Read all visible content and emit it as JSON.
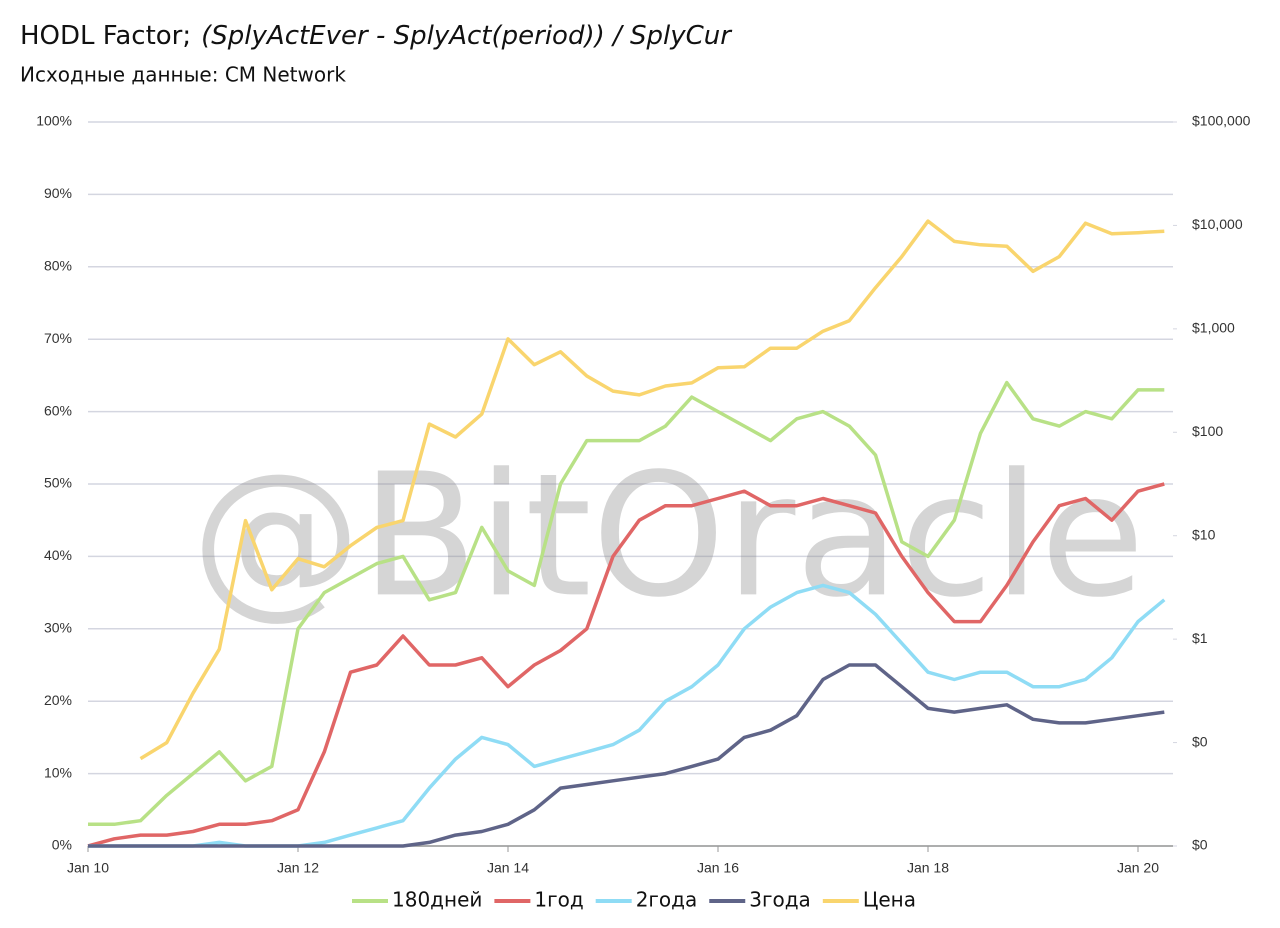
{
  "chart_data": {
    "type": "line",
    "title": "HODL Factor;",
    "title_formula": "(SplyActEver - SplyAct(period)) / SplyCur",
    "subtitle": "Исходные данные: CM Network",
    "watermark": "@BitOracle",
    "x": [
      "2010-01",
      "2010-04",
      "2010-07",
      "2010-10",
      "2011-01",
      "2011-04",
      "2011-07",
      "2011-10",
      "2012-01",
      "2012-04",
      "2012-07",
      "2012-10",
      "2013-01",
      "2013-04",
      "2013-07",
      "2013-10",
      "2014-01",
      "2014-04",
      "2014-07",
      "2014-10",
      "2015-01",
      "2015-04",
      "2015-07",
      "2015-10",
      "2016-01",
      "2016-04",
      "2016-07",
      "2016-10",
      "2017-01",
      "2017-04",
      "2017-07",
      "2017-10",
      "2018-01",
      "2018-04",
      "2018-07",
      "2018-10",
      "2019-01",
      "2019-04",
      "2019-07",
      "2019-10",
      "2020-01",
      "2020-04"
    ],
    "xlim": [
      "2010-01",
      "2020-05"
    ],
    "xticks": [
      {
        "value": "2010-01",
        "label": "Jan 10"
      },
      {
        "value": "2012-01",
        "label": "Jan 12"
      },
      {
        "value": "2014-01",
        "label": "Jan 14"
      },
      {
        "value": "2016-01",
        "label": "Jan 16"
      },
      {
        "value": "2018-01",
        "label": "Jan 18"
      },
      {
        "value": "2020-01",
        "label": "Jan 20"
      }
    ],
    "ylim": [
      0,
      100
    ],
    "yticks": [
      {
        "value": 0,
        "label": "0%"
      },
      {
        "value": 10,
        "label": "10%"
      },
      {
        "value": 20,
        "label": "20%"
      },
      {
        "value": 30,
        "label": "30%"
      },
      {
        "value": 40,
        "label": "40%"
      },
      {
        "value": 50,
        "label": "50%"
      },
      {
        "value": 60,
        "label": "60%"
      },
      {
        "value": 70,
        "label": "70%"
      },
      {
        "value": 80,
        "label": "80%"
      },
      {
        "value": 90,
        "label": "90%"
      },
      {
        "value": 100,
        "label": "100%"
      }
    ],
    "y2lim": [
      0.01,
      100000
    ],
    "y2log": true,
    "y2ticks": [
      {
        "value": 0.01,
        "label": "$0"
      },
      {
        "value": 0.1,
        "label": "$0"
      },
      {
        "value": 1,
        "label": "$1"
      },
      {
        "value": 10,
        "label": "$10"
      },
      {
        "value": 100,
        "label": "$100"
      },
      {
        "value": 1000,
        "label": "$1,000"
      },
      {
        "value": 10000,
        "label": "$10,000"
      },
      {
        "value": 100000,
        "label": "$100,000"
      }
    ],
    "grid": true,
    "legend": "bottom",
    "series": [
      {
        "name": "180дней",
        "color": "#b8e186",
        "values": [
          3,
          3,
          3.5,
          7,
          10,
          13,
          9,
          11,
          30,
          35,
          37,
          39,
          40,
          34,
          35,
          44,
          38,
          36,
          50,
          56,
          56,
          56,
          58,
          62,
          60,
          58,
          56,
          59,
          60,
          58,
          54,
          42,
          40,
          45,
          57,
          64,
          59,
          58,
          60,
          59,
          63,
          63
        ]
      },
      {
        "name": "1год",
        "color": "#e06666",
        "values": [
          0,
          1,
          1.5,
          1.5,
          2,
          3,
          3,
          3.5,
          5,
          13,
          24,
          25,
          29,
          25,
          25,
          26,
          22,
          25,
          27,
          30,
          40,
          45,
          47,
          47,
          48,
          49,
          47,
          47,
          48,
          47,
          46,
          40,
          35,
          31,
          31,
          36,
          42,
          47,
          48,
          45,
          49,
          50
        ]
      },
      {
        "name": "2года",
        "color": "#8fdcf5",
        "values": [
          0,
          0,
          0,
          0,
          0,
          0.5,
          0,
          0,
          0,
          0.5,
          1.5,
          2.5,
          3.5,
          8,
          12,
          15,
          14,
          11,
          12,
          13,
          14,
          16,
          20,
          22,
          25,
          30,
          33,
          35,
          36,
          35,
          32,
          28,
          24,
          23,
          24,
          24,
          22,
          22,
          23,
          26,
          31,
          34
        ]
      },
      {
        "name": "3года",
        "color": "#5f6488",
        "values": [
          0,
          0,
          0,
          0,
          0,
          0,
          0,
          0,
          0,
          0,
          0,
          0,
          0,
          0.5,
          1.5,
          2,
          3,
          5,
          8,
          8.5,
          9,
          9.5,
          10,
          11,
          12,
          15,
          16,
          18,
          23,
          25,
          25,
          22,
          19,
          18.5,
          19,
          19.5,
          17.5,
          17,
          17,
          17.5,
          18,
          18.5
        ]
      },
      {
        "name": "Цена",
        "color": "#f9d56e",
        "axis": "y2",
        "values": [
          null,
          null,
          0.07,
          0.1,
          0.3,
          0.8,
          14,
          3,
          6,
          5,
          8,
          12,
          14,
          120,
          90,
          150,
          800,
          450,
          600,
          350,
          250,
          230,
          280,
          300,
          420,
          430,
          650,
          650,
          950,
          1200,
          2500,
          5000,
          11000,
          7000,
          6500,
          6300,
          3600,
          5000,
          10500,
          8300,
          8500,
          8800
        ]
      }
    ]
  }
}
